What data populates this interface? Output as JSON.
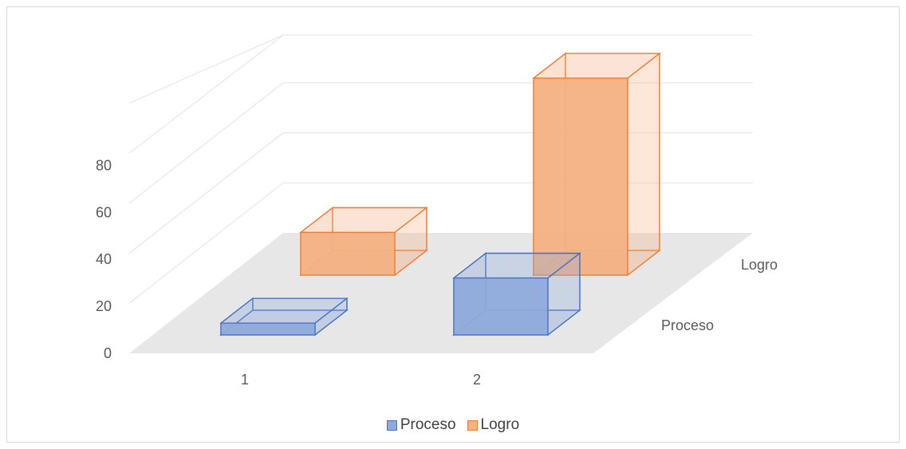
{
  "chart_data": {
    "type": "bar",
    "categories": [
      "1",
      "2"
    ],
    "series": [
      {
        "name": "Proceso",
        "values": [
          5,
          24
        ],
        "color": "#8eaadb",
        "edge": "#4472c4"
      },
      {
        "name": "Logro",
        "values": [
          18,
          83
        ],
        "color": "#f4b183",
        "edge": "#ed7d31"
      }
    ],
    "yticks": [
      "0",
      "20",
      "40",
      "60",
      "80"
    ],
    "ylim": [
      0,
      80
    ],
    "depth_labels": [
      "Proceso",
      "Logro"
    ],
    "legend_position": "bottom",
    "grid": true,
    "chart_style": "3d-column"
  }
}
